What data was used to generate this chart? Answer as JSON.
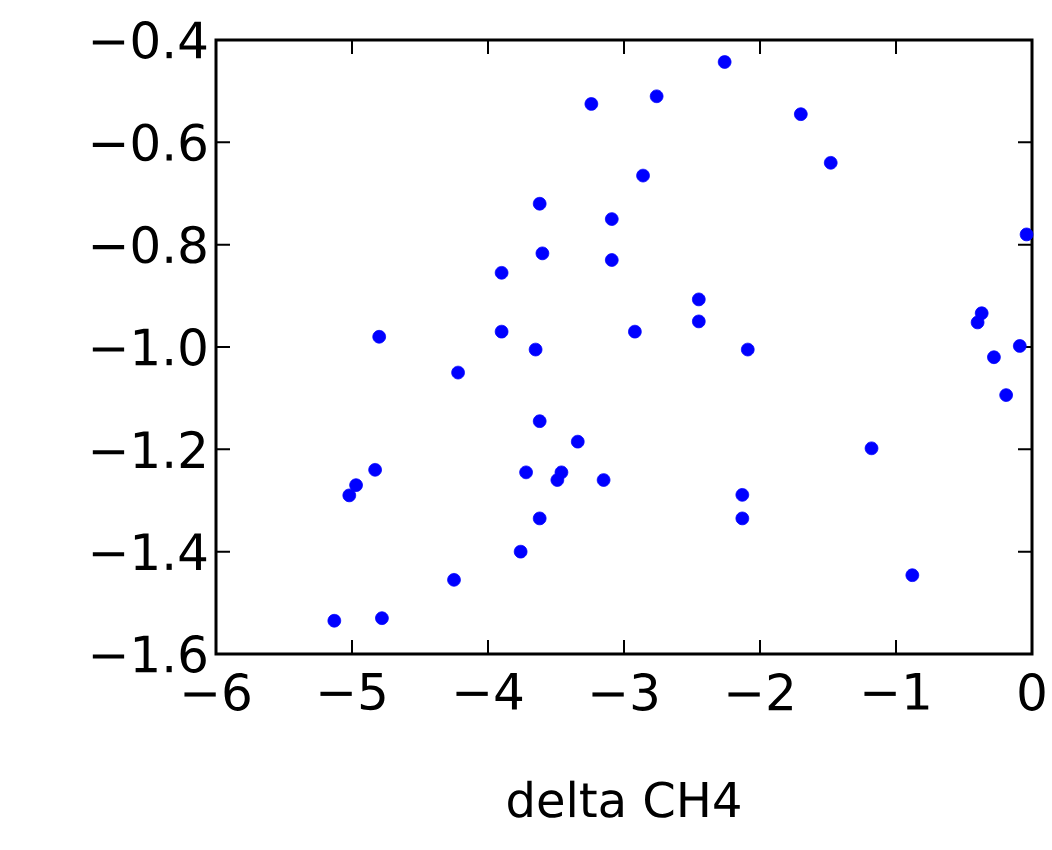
{
  "chart_data": {
    "type": "scatter",
    "xlabel": "delta CH4",
    "xlim": [
      -6,
      0
    ],
    "ylim": [
      -1.6,
      -0.4
    ],
    "xticks": [
      {
        "value": -6,
        "label": "−6"
      },
      {
        "value": -5,
        "label": "−5"
      },
      {
        "value": -4,
        "label": "−4"
      },
      {
        "value": -3,
        "label": "−3"
      },
      {
        "value": -2,
        "label": "−2"
      },
      {
        "value": -1,
        "label": "−1"
      },
      0
    ],
    "yticks": [
      {
        "value": -1.6,
        "label": "−1.6"
      },
      {
        "value": -1.4,
        "label": "−1.4"
      },
      {
        "value": -1.2,
        "label": "−1.2"
      },
      {
        "value": -1.0,
        "label": "−1.0"
      },
      {
        "value": -0.8,
        "label": "−0.8"
      },
      {
        "value": -0.6,
        "label": "−0.6"
      },
      {
        "value": -0.4,
        "label": "−0.4"
      }
    ],
    "marker": "circle",
    "grid": false,
    "series": [
      {
        "color": "#0000ff",
        "x": [
          -3.24,
          -2.86,
          -3.62,
          -3.09,
          -3.6,
          -3.09,
          -3.9,
          -4.8,
          -3.9,
          -3.65,
          -2.92,
          -4.22,
          -3.62,
          -3.34,
          -4.83,
          -4.97,
          -5.02,
          -3.72,
          -3.46,
          -3.49,
          -3.15,
          -3.62,
          -3.76,
          -4.25,
          -5.13,
          -4.78,
          -2.26,
          -2.76,
          -1.7,
          -1.48,
          -0.04,
          -2.45,
          -2.45,
          -2.09,
          -0.37,
          -0.4,
          -0.28,
          -0.09,
          -0.19,
          -1.18,
          -2.13,
          -2.13,
          -0.88
        ],
        "values": [
          -0.525,
          -0.665,
          -0.72,
          -0.75,
          -0.817,
          -0.83,
          -0.855,
          -0.98,
          -0.97,
          -1.005,
          -0.97,
          -1.05,
          -1.145,
          -1.185,
          -1.24,
          -1.27,
          -1.29,
          -1.245,
          -1.245,
          -1.26,
          -1.26,
          -1.335,
          -1.4,
          -1.455,
          -1.535,
          -1.53,
          -0.443,
          -0.51,
          -0.545,
          -0.64,
          -0.78,
          -0.907,
          -0.95,
          -1.005,
          -0.934,
          -0.952,
          -1.02,
          -0.998,
          -1.094,
          -1.198,
          -1.289,
          -1.335,
          -1.446
        ]
      }
    ]
  }
}
